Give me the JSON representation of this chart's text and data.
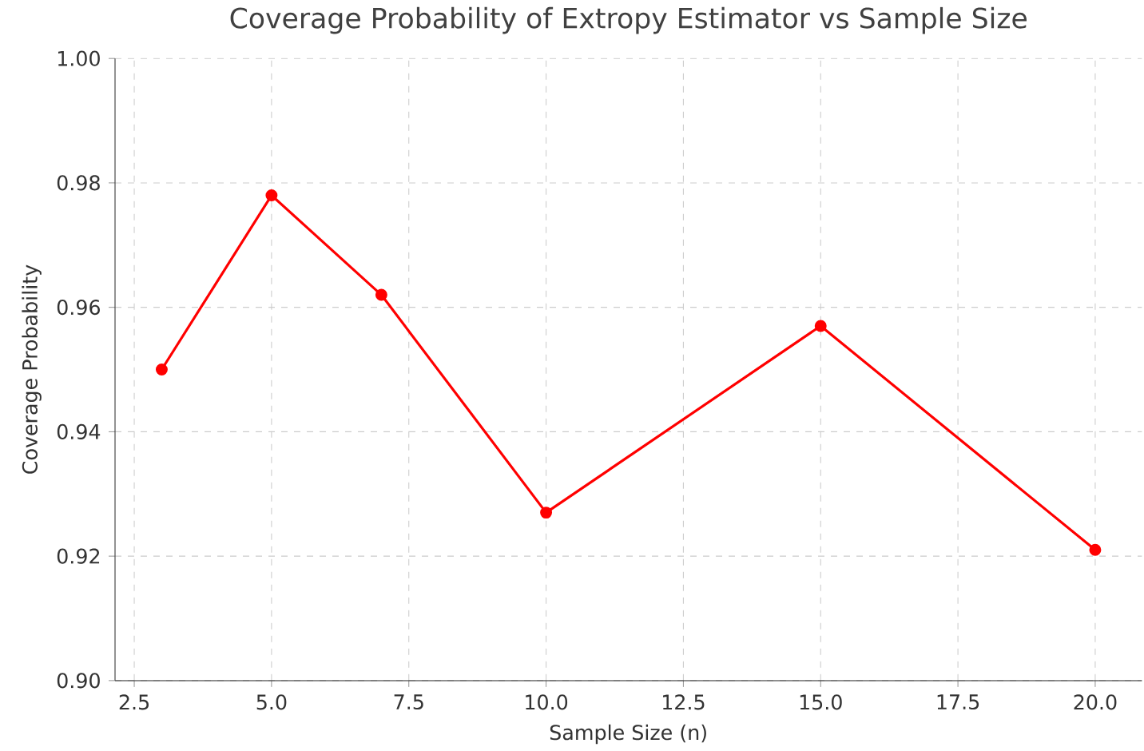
{
  "chart_data": {
    "type": "line",
    "title": "Coverage Probability of Extropy Estimator vs Sample Size",
    "xlabel": "Sample Size (n)",
    "ylabel": "Coverage Probability",
    "x": [
      3,
      5,
      7,
      10,
      15,
      20
    ],
    "values": [
      0.95,
      0.978,
      0.962,
      0.927,
      0.957,
      0.921
    ],
    "color": "#ff0000",
    "marker": "circle",
    "line_style": "solid",
    "grid": true,
    "xlim": [
      2.15,
      20.85
    ],
    "ylim": [
      0.9,
      1.0
    ],
    "xticks": [
      {
        "value": 2.5,
        "label": "2.5"
      },
      {
        "value": 5,
        "label": "5.0"
      },
      {
        "value": 7.5,
        "label": "7.5"
      },
      {
        "value": 10,
        "label": "10.0"
      },
      {
        "value": 12.5,
        "label": "12.5"
      },
      {
        "value": 15,
        "label": "15.0"
      },
      {
        "value": 17.5,
        "label": "17.5"
      },
      {
        "value": 20,
        "label": "20.0"
      }
    ],
    "yticks": [
      {
        "value": 0.9,
        "label": "0.90"
      },
      {
        "value": 0.92,
        "label": "0.92"
      },
      {
        "value": 0.94,
        "label": "0.94"
      },
      {
        "value": 0.96,
        "label": "0.96"
      },
      {
        "value": 0.98,
        "label": "0.98"
      },
      {
        "value": 1.0,
        "label": "1.00"
      }
    ]
  }
}
